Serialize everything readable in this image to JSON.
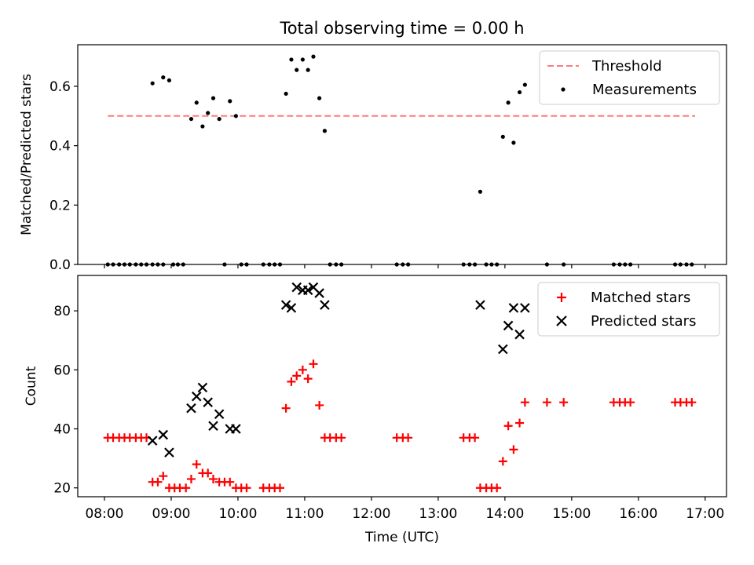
{
  "chart_data": {
    "title": "Total observing time = 0.00 h",
    "xlabel": "Time (UTC)",
    "x_ticks": [
      "08:00",
      "09:00",
      "10:00",
      "11:00",
      "12:00",
      "13:00",
      "14:00",
      "15:00",
      "16:00",
      "17:00"
    ],
    "x_unit": "hour of day (UTC)",
    "xlim": [
      7.6,
      17.32
    ],
    "charts": [
      {
        "type": "scatter",
        "ylabel": "Matched/Predicted stars",
        "ylim": [
          0,
          0.74
        ],
        "y_ticks": [
          0.0,
          0.2,
          0.4,
          0.6
        ],
        "y_tick_labels": [
          "0.0",
          "0.2",
          "0.4",
          "0.6"
        ],
        "legend_position": "top-right",
        "threshold": {
          "name": "Threshold",
          "value": 0.5,
          "x_range": [
            8.05,
            16.85
          ],
          "color": "#ff7b7b"
        },
        "series": [
          {
            "name": "Measurements",
            "color": "#000000",
            "x": [
              8.05,
              8.13,
              8.22,
              8.3,
              8.38,
              8.47,
              8.55,
              8.63,
              8.72,
              8.8,
              8.88,
              9.03,
              9.1,
              9.18,
              8.72,
              8.88,
              8.97,
              9.3,
              9.38,
              9.47,
              9.55,
              9.63,
              9.72,
              9.8,
              9.88,
              9.97,
              10.05,
              10.13,
              10.38,
              10.47,
              10.55,
              10.63,
              10.72,
              10.8,
              10.88,
              10.97,
              11.05,
              11.13,
              11.22,
              11.3,
              11.38,
              11.47,
              11.55,
              12.38,
              12.47,
              12.55,
              13.38,
              13.47,
              13.55,
              13.63,
              13.72,
              13.8,
              13.88,
              13.97,
              14.05,
              14.13,
              14.22,
              14.3,
              14.63,
              14.88,
              15.63,
              15.72,
              15.8,
              15.88,
              16.55,
              16.63,
              16.72,
              16.8
            ],
            "y": [
              0,
              0,
              0,
              0,
              0,
              0,
              0,
              0,
              0,
              0,
              0,
              0,
              0,
              0,
              0.61,
              0.63,
              0.62,
              0.49,
              0.545,
              0.465,
              0.51,
              0.56,
              0.49,
              0,
              0.55,
              0.5,
              0,
              0,
              0,
              0,
              0,
              0,
              0.575,
              0.69,
              0.655,
              0.69,
              0.655,
              0.7,
              0.56,
              0.45,
              0,
              0,
              0,
              0,
              0,
              0,
              0,
              0,
              0,
              0.245,
              0,
              0,
              0,
              0.43,
              0.545,
              0.41,
              0.58,
              0.605,
              0,
              0,
              0,
              0,
              0,
              0,
              0,
              0,
              0,
              0
            ]
          }
        ]
      },
      {
        "type": "scatter",
        "ylabel": "Count",
        "ylim": [
          17,
          92
        ],
        "y_ticks": [
          20,
          40,
          60,
          80
        ],
        "y_tick_labels": [
          "20",
          "40",
          "60",
          "80"
        ],
        "legend_position": "top-right",
        "series": [
          {
            "name": "Matched stars",
            "marker": "+",
            "color": "#ff0000",
            "x": [
              8.05,
              8.13,
              8.22,
              8.3,
              8.38,
              8.47,
              8.55,
              8.63,
              8.72,
              8.8,
              8.88,
              8.97,
              9.05,
              9.13,
              9.22,
              9.3,
              9.38,
              9.47,
              9.55,
              9.63,
              9.72,
              9.8,
              9.88,
              9.97,
              10.05,
              10.13,
              10.38,
              10.47,
              10.55,
              10.63,
              10.72,
              10.8,
              10.88,
              10.97,
              11.05,
              11.13,
              11.22,
              11.3,
              11.38,
              11.47,
              11.55,
              12.38,
              12.47,
              12.55,
              13.38,
              13.47,
              13.55,
              13.63,
              13.72,
              13.8,
              13.88,
              13.97,
              14.05,
              14.13,
              14.22,
              14.3,
              14.63,
              14.88,
              15.63,
              15.72,
              15.8,
              15.88,
              16.55,
              16.63,
              16.72,
              16.8
            ],
            "y": [
              37,
              37,
              37,
              37,
              37,
              37,
              37,
              37,
              22,
              22,
              24,
              20,
              20,
              20,
              20,
              23,
              28,
              25,
              25,
              23,
              22,
              22,
              22,
              20,
              20,
              20,
              20,
              20,
              20,
              20,
              47,
              56,
              58,
              60,
              57,
              62,
              48,
              37,
              37,
              37,
              37,
              37,
              37,
              37,
              37,
              37,
              37,
              20,
              20,
              20,
              20,
              29,
              41,
              33,
              42,
              49,
              49,
              49,
              49,
              49,
              49,
              49,
              49,
              49,
              49,
              49
            ]
          },
          {
            "name": "Predicted stars",
            "marker": "x",
            "color": "#000000",
            "x": [
              8.72,
              8.88,
              8.97,
              9.3,
              9.38,
              9.47,
              9.55,
              9.63,
              9.72,
              9.88,
              9.97,
              10.72,
              10.8,
              10.88,
              10.97,
              11.05,
              11.13,
              11.22,
              11.3,
              13.63,
              13.97,
              14.05,
              14.13,
              14.22,
              14.3
            ],
            "y": [
              36,
              38,
              32,
              47,
              51,
              54,
              49,
              41,
              45,
              40,
              40,
              82,
              81,
              88,
              87,
              87,
              88,
              86,
              82,
              82,
              67,
              75,
              81,
              72,
              81
            ]
          }
        ]
      }
    ]
  }
}
